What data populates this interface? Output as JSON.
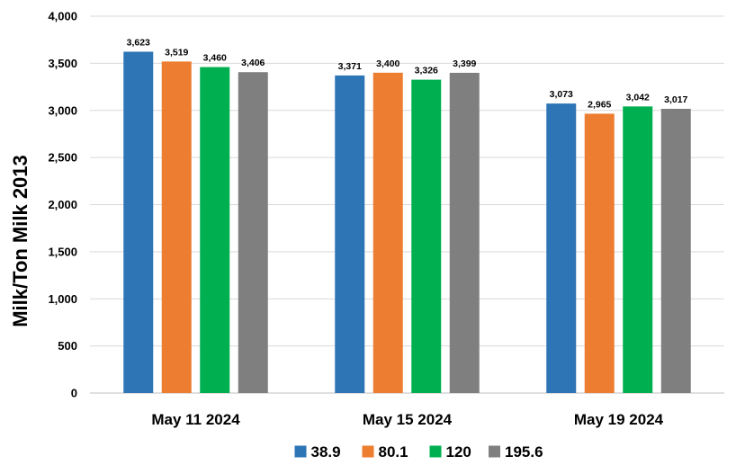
{
  "chart_data": {
    "type": "bar",
    "title": "",
    "xlabel": "",
    "ylabel": "Milk/Ton Milk 2013",
    "ylim": [
      0,
      4000
    ],
    "yticks": [
      0,
      500,
      1000,
      1500,
      2000,
      2500,
      3000,
      3500,
      4000
    ],
    "ytick_labels": [
      "0",
      "500",
      "1,000",
      "1,500",
      "2,000",
      "2,500",
      "3,000",
      "3,500",
      "4,000"
    ],
    "grid": true,
    "legend_position": "bottom",
    "categories": [
      "May 11 2024",
      "May 15 2024",
      "May 19 2024"
    ],
    "series": [
      {
        "name": "38.9",
        "color": "#2e75b6",
        "values": [
          3623,
          3371,
          3073
        ],
        "labels": [
          "3,623",
          "3,371",
          "3,073"
        ]
      },
      {
        "name": "80.1",
        "color": "#ed7d31",
        "values": [
          3519,
          3400,
          2965
        ],
        "labels": [
          "3,519",
          "3,400",
          "2,965"
        ]
      },
      {
        "name": "120",
        "color": "#00b050",
        "values": [
          3460,
          3326,
          3042
        ],
        "labels": [
          "3,460",
          "3,326",
          "3,042"
        ]
      },
      {
        "name": "195.6",
        "color": "#7f7f7f",
        "values": [
          3406,
          3399,
          3017
        ],
        "labels": [
          "3,406",
          "3,399",
          "3,017"
        ]
      }
    ]
  }
}
